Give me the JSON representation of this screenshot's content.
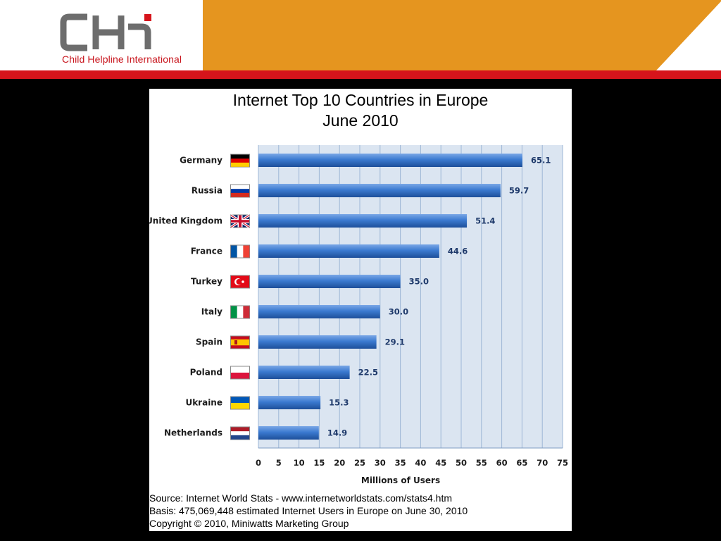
{
  "header": {
    "logo_text": "CHI",
    "organization": "Child Helpline International",
    "colors": {
      "orange": "#e5951f",
      "red": "#d6141b",
      "logo_grey": "#6d6d6d"
    }
  },
  "footnotes": {
    "source": "Source: Internet World Stats  -  www.internetworldstats.com/stats4.htm",
    "basis": "Basis: 475,069,448 estimated Internet  Users in Europe on June 30, 2010",
    "copyright": "Copyright © 2010, Miniwatts Marketing Group"
  },
  "chart_data": {
    "type": "bar",
    "orientation": "horizontal",
    "title": "Internet Top 10 Countries in Europe",
    "subtitle": "June 2010",
    "xlabel": "Millions of Users",
    "ylabel": "",
    "xlim": [
      0,
      75
    ],
    "xticks": [
      0,
      5,
      10,
      15,
      20,
      25,
      30,
      35,
      40,
      45,
      50,
      55,
      60,
      65,
      70,
      75
    ],
    "grid": "vertical",
    "legend": "none",
    "bar_color": "#2f6fc4",
    "plot_background": "#dbe5f1",
    "categories": [
      "Germany",
      "Russia",
      "United Kingdom",
      "France",
      "Turkey",
      "Italy",
      "Spain",
      "Poland",
      "Ukraine",
      "Netherlands"
    ],
    "values": [
      65.1,
      59.7,
      51.4,
      44.6,
      35.0,
      30.0,
      29.1,
      22.5,
      15.3,
      14.9
    ],
    "value_labels": [
      "65.1",
      "59.7",
      "51.4",
      "44.6",
      "35.0",
      "30.0",
      "29.1",
      "22.5",
      "15.3",
      "14.9"
    ],
    "flag_icons": [
      "germany-flag-icon",
      "russia-flag-icon",
      "uk-flag-icon",
      "france-flag-icon",
      "turkey-flag-icon",
      "italy-flag-icon",
      "spain-flag-icon",
      "poland-flag-icon",
      "ukraine-flag-icon",
      "netherlands-flag-icon"
    ]
  }
}
